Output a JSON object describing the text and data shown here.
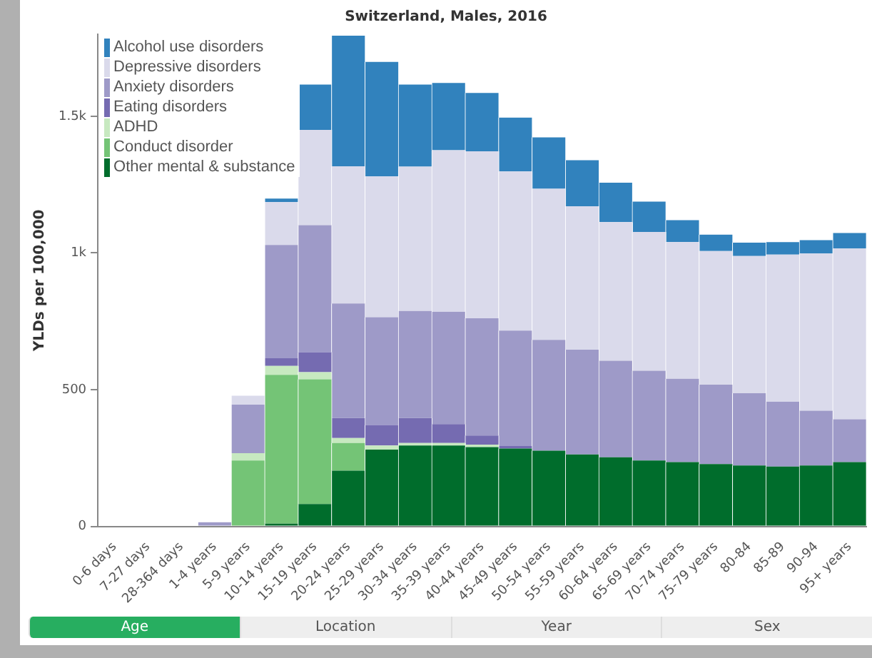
{
  "chart_data": {
    "type": "bar",
    "stacked": true,
    "title": "Switzerland, Males, 2016",
    "ylabel": "YLDs per 100,000",
    "categories": [
      "0-6 days",
      "7-27 days",
      "28-364 days",
      "1-4 years",
      "5-9 years",
      "10-14 years",
      "15-19 years",
      "20-24 years",
      "25-29 years",
      "30-34 years",
      "35-39 years",
      "40-44 years",
      "45-49 years",
      "50-54 years",
      "55-59 years",
      "60-64 years",
      "65-69 years",
      "70-74 years",
      "75-79 years",
      "80-84",
      "85-89",
      "90-94",
      "95+ years"
    ],
    "series": [
      {
        "name": "Other mental & substance",
        "color": "#006d2c",
        "values": [
          null,
          null,
          null,
          null,
          null,
          10,
          82,
          204,
          281,
          296,
          296,
          290,
          285,
          277,
          263,
          253,
          241,
          235,
          228,
          223,
          219,
          223,
          235
        ]
      },
      {
        "name": "Conduct disorder",
        "color": "#74c476",
        "values": [
          null,
          null,
          null,
          null,
          241,
          544,
          456,
          101,
          null,
          null,
          null,
          null,
          null,
          null,
          null,
          null,
          null,
          null,
          null,
          null,
          null,
          null,
          null
        ]
      },
      {
        "name": "ADHD",
        "color": "#c7e9c0",
        "values": [
          null,
          null,
          null,
          null,
          27,
          33,
          26,
          18,
          15,
          9,
          9,
          9,
          null,
          null,
          null,
          null,
          null,
          null,
          null,
          null,
          null,
          null,
          null
        ]
      },
      {
        "name": "Eating disorders",
        "color": "#756bb1",
        "values": [
          null,
          null,
          null,
          null,
          null,
          28,
          73,
          73,
          75,
          91,
          69,
          33,
          9,
          null,
          null,
          null,
          null,
          null,
          null,
          null,
          null,
          null,
          null
        ]
      },
      {
        "name": "Anxiety disorders",
        "color": "#9e9ac8",
        "values": [
          null,
          null,
          null,
          15,
          177,
          414,
          465,
          419,
          394,
          392,
          411,
          429,
          422,
          405,
          383,
          353,
          328,
          305,
          290,
          264,
          237,
          200,
          157
        ]
      },
      {
        "name": "Depressive disorders",
        "color": "#dadaeb",
        "values": [
          null,
          null,
          null,
          null,
          33,
          157,
          348,
          502,
          515,
          528,
          591,
          611,
          582,
          553,
          525,
          507,
          508,
          500,
          489,
          502,
          538,
          575,
          624
        ]
      },
      {
        "name": "Alcohol use disorders",
        "color": "#3182bd",
        "values": [
          null,
          null,
          null,
          null,
          null,
          13,
          166,
          478,
          419,
          300,
          246,
          213,
          197,
          188,
          168,
          144,
          111,
          80,
          60,
          49,
          46,
          49,
          57
        ]
      }
    ],
    "ylim": [
      0,
      1800
    ],
    "yticks": [
      0,
      500,
      {
        "value": 1000,
        "label": "1k"
      },
      {
        "value": 1500,
        "label": "1.5k"
      }
    ],
    "grid": false,
    "legend": "top left",
    "annotations": [
      "Age",
      "Location",
      "Year",
      "Sex"
    ]
  }
}
